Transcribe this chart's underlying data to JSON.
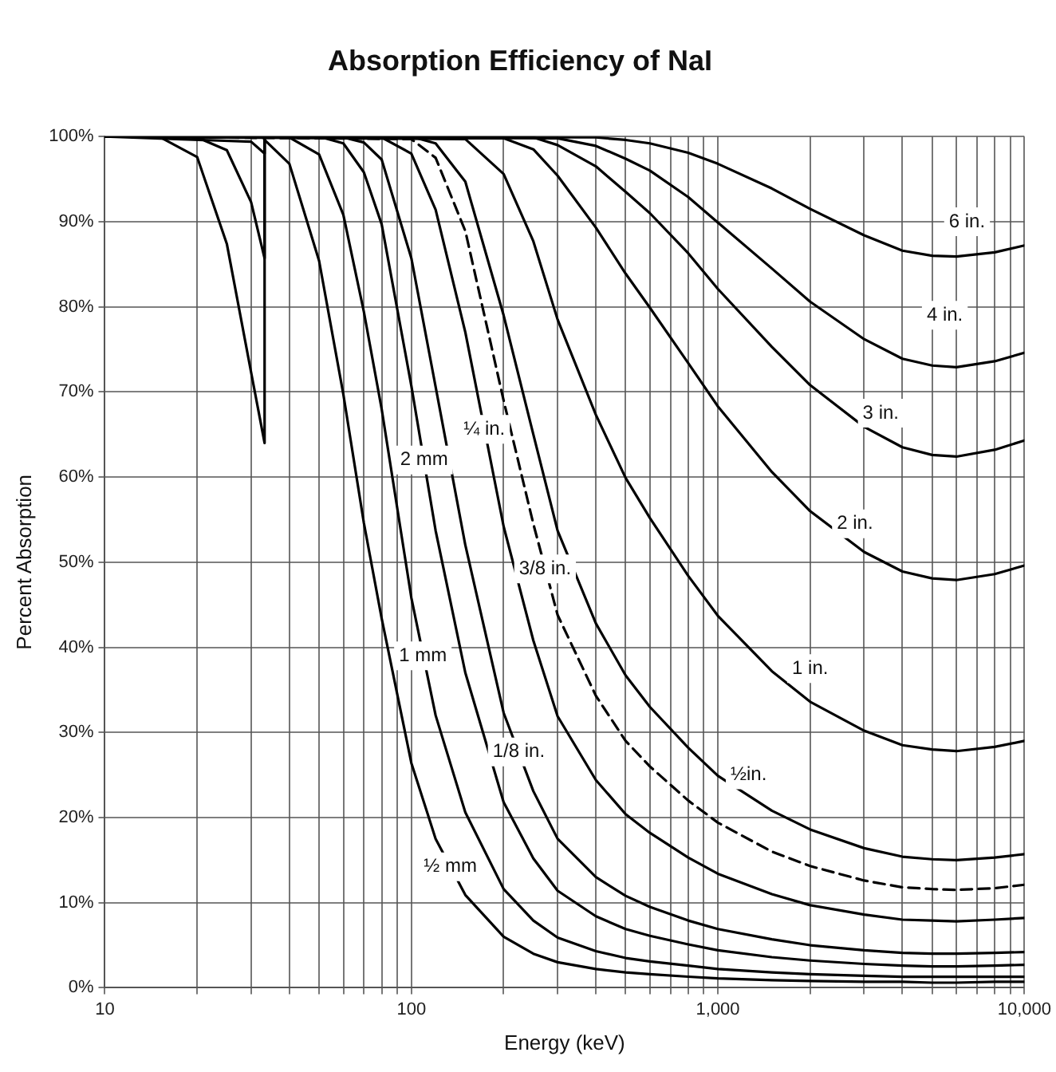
{
  "chart_data": {
    "type": "line",
    "title": "Absorption Efficiency of NaI",
    "xlabel": "Energy (keV)",
    "ylabel": "Percent Absorption",
    "log": "x",
    "grid": true,
    "marker": "none",
    "line_style": "solid",
    "xlim": [
      10,
      10000
    ],
    "ylim": [
      0,
      100
    ],
    "xticks": [
      10,
      {
        "value": 20,
        "label": null
      },
      {
        "value": 30,
        "label": null
      },
      {
        "value": 40,
        "label": null
      },
      {
        "value": 50,
        "label": null
      },
      {
        "value": 60,
        "label": null
      },
      {
        "value": 70,
        "label": null
      },
      {
        "value": 80,
        "label": null
      },
      {
        "value": 90,
        "label": null
      },
      100,
      {
        "value": 200,
        "label": null
      },
      {
        "value": 300,
        "label": null
      },
      {
        "value": 400,
        "label": null
      },
      {
        "value": 500,
        "label": null
      },
      {
        "value": 600,
        "label": null
      },
      {
        "value": 700,
        "label": null
      },
      {
        "value": 800,
        "label": null
      },
      {
        "value": 900,
        "label": null
      },
      {
        "value": 1000,
        "label": "1,000"
      },
      {
        "value": 2000,
        "label": null
      },
      {
        "value": 3000,
        "label": null
      },
      {
        "value": 4000,
        "label": null
      },
      {
        "value": 5000,
        "label": null
      },
      {
        "value": 6000,
        "label": null
      },
      {
        "value": 7000,
        "label": null
      },
      {
        "value": 8000,
        "label": null
      },
      {
        "value": 9000,
        "label": null
      },
      {
        "value": 10000,
        "label": "10,000"
      }
    ],
    "yticks": [
      {
        "value": 0,
        "label": "0%"
      },
      {
        "value": 10,
        "label": "10%"
      },
      {
        "value": 20,
        "label": "20%"
      },
      {
        "value": 30,
        "label": "30%"
      },
      {
        "value": 40,
        "label": "40%"
      },
      {
        "value": 50,
        "label": "50%"
      },
      {
        "value": 60,
        "label": "60%"
      },
      {
        "value": 70,
        "label": "70%"
      },
      {
        "value": 80,
        "label": "80%"
      },
      {
        "value": 90,
        "label": "90%"
      },
      {
        "value": 100,
        "label": "100%"
      }
    ],
    "series": [
      {
        "color": "#000000",
        "x": [
          10,
          15,
          20,
          25,
          30,
          33.2,
          33.2,
          40,
          50,
          60,
          70,
          80,
          100,
          120,
          150,
          200,
          250,
          300,
          400,
          500,
          600,
          800,
          1000,
          1500,
          2000,
          3000,
          4000,
          5000,
          6000,
          8000,
          10000
        ],
        "values": [
          100,
          100,
          97.6,
          87.4,
          72.3,
          64,
          99.6,
          96.8,
          85.4,
          69.7,
          54.6,
          43.4,
          26.4,
          17.5,
          10.9,
          6.0,
          4.0,
          3.0,
          2.2,
          1.8,
          1.6,
          1.3,
          1.1,
          0.9,
          0.8,
          0.7,
          0.7,
          0.6,
          0.6,
          0.7,
          0.7
        ]
      },
      {
        "color": "#000000",
        "x": [
          10,
          20,
          25,
          30,
          33.2,
          33.2,
          40,
          50,
          60,
          70,
          80,
          100,
          120,
          150,
          200,
          250,
          300,
          400,
          500,
          600,
          800,
          1000,
          1500,
          2000,
          3000,
          4000,
          5000,
          6000,
          8000,
          10000
        ],
        "values": [
          100,
          99.9,
          98.4,
          92.3,
          85.7,
          100,
          99.9,
          97.9,
          90.8,
          79.4,
          68.0,
          45.8,
          32.0,
          20.6,
          11.6,
          7.9,
          5.9,
          4.3,
          3.5,
          3.1,
          2.6,
          2.2,
          1.8,
          1.6,
          1.4,
          1.3,
          1.3,
          1.3,
          1.3,
          1.3
        ]
      },
      {
        "color": "#000000",
        "x": [
          10,
          30,
          33.2,
          33.2,
          50,
          60,
          70,
          80,
          100,
          120,
          150,
          200,
          250,
          300,
          400,
          500,
          600,
          800,
          1000,
          1500,
          2000,
          3000,
          4000,
          5000,
          6000,
          8000,
          10000
        ],
        "values": [
          100,
          99.4,
          98.0,
          100,
          100,
          99.2,
          95.8,
          89.7,
          70.7,
          53.7,
          37.0,
          21.8,
          15.2,
          11.4,
          8.4,
          6.9,
          6.1,
          5.1,
          4.4,
          3.6,
          3.2,
          2.8,
          2.6,
          2.5,
          2.5,
          2.6,
          2.7
        ]
      },
      {
        "color": "#000000",
        "x": [
          10,
          60,
          70,
          80,
          100,
          120,
          150,
          200,
          250,
          300,
          400,
          500,
          600,
          800,
          1000,
          1500,
          2000,
          3000,
          4000,
          5000,
          6000,
          8000,
          10000
        ],
        "values": [
          100,
          99.9,
          99.3,
          97.3,
          85.7,
          70.6,
          52.0,
          32.3,
          23.1,
          17.5,
          13.0,
          10.8,
          9.5,
          7.9,
          6.9,
          5.7,
          5.0,
          4.4,
          4.1,
          4.0,
          4.0,
          4.1,
          4.2
        ]
      },
      {
        "color": "#000000",
        "x": [
          10,
          80,
          100,
          120,
          150,
          200,
          250,
          300,
          400,
          500,
          600,
          800,
          1000,
          1500,
          2000,
          3000,
          4000,
          5000,
          6000,
          8000,
          10000
        ],
        "values": [
          100,
          99.9,
          98.0,
          91.4,
          77.0,
          54.2,
          40.8,
          31.9,
          24.4,
          20.4,
          18.2,
          15.3,
          13.4,
          11.0,
          9.7,
          8.6,
          8.0,
          7.9,
          7.8,
          8.0,
          8.2
        ]
      },
      {
        "color": "#000000",
        "line_style": "dashed",
        "x": [
          10,
          100,
          120,
          150,
          200,
          250,
          300,
          400,
          500,
          600,
          800,
          1000,
          1500,
          2000,
          3000,
          4000,
          5000,
          6000,
          8000,
          10000
        ],
        "values": [
          100,
          99.7,
          97.5,
          88.9,
          69.0,
          54.5,
          43.8,
          34.3,
          29.0,
          26.0,
          22.0,
          19.4,
          16.0,
          14.3,
          12.6,
          11.8,
          11.6,
          11.5,
          11.7,
          12.1
        ]
      },
      {
        "color": "#000000",
        "x": [
          10,
          100,
          120,
          150,
          200,
          250,
          300,
          400,
          500,
          600,
          800,
          1000,
          1500,
          2000,
          3000,
          4000,
          5000,
          6000,
          8000,
          10000
        ],
        "values": [
          100,
          100,
          99.2,
          94.7,
          79.0,
          65.0,
          53.7,
          42.8,
          36.7,
          33.0,
          28.2,
          24.9,
          20.8,
          18.6,
          16.4,
          15.4,
          15.1,
          15.0,
          15.3,
          15.7
        ]
      },
      {
        "color": "#000000",
        "x": [
          10,
          150,
          200,
          250,
          300,
          400,
          500,
          600,
          800,
          1000,
          1500,
          2000,
          3000,
          4000,
          5000,
          6000,
          8000,
          10000
        ],
        "values": [
          100,
          99.7,
          95.6,
          87.7,
          78.5,
          67.3,
          59.9,
          55.2,
          48.4,
          43.7,
          37.2,
          33.6,
          30.2,
          28.5,
          28.0,
          27.8,
          28.3,
          29.0
        ]
      },
      {
        "color": "#000000",
        "x": [
          10,
          200,
          250,
          300,
          400,
          500,
          600,
          800,
          1000,
          1500,
          2000,
          3000,
          4000,
          5000,
          6000,
          8000,
          10000
        ],
        "values": [
          100,
          99.8,
          98.5,
          95.4,
          89.3,
          83.9,
          79.9,
          73.4,
          68.3,
          60.6,
          56.0,
          51.2,
          48.9,
          48.1,
          47.9,
          48.6,
          49.6
        ]
      },
      {
        "color": "#000000",
        "x": [
          10,
          250,
          300,
          400,
          500,
          600,
          800,
          1000,
          1500,
          2000,
          3000,
          4000,
          5000,
          6000,
          8000,
          10000
        ],
        "values": [
          100,
          99.9,
          99.0,
          96.5,
          93.5,
          91.0,
          86.3,
          82.1,
          75.3,
          70.8,
          65.9,
          63.5,
          62.6,
          62.4,
          63.2,
          64.3
        ]
      },
      {
        "color": "#000000",
        "x": [
          10,
          300,
          400,
          500,
          600,
          800,
          1000,
          1500,
          2000,
          3000,
          4000,
          5000,
          6000,
          8000,
          10000
        ],
        "values": [
          100,
          99.8,
          98.9,
          97.4,
          96.0,
          92.9,
          89.9,
          84.5,
          80.6,
          76.2,
          73.9,
          73.1,
          72.9,
          73.6,
          74.6
        ]
      },
      {
        "color": "#000000",
        "x": [
          10,
          400,
          500,
          600,
          800,
          1000,
          1500,
          2000,
          3000,
          4000,
          5000,
          6000,
          8000,
          10000
        ],
        "values": [
          100,
          99.9,
          99.6,
          99.2,
          98.1,
          96.8,
          93.9,
          91.5,
          88.4,
          86.6,
          86.0,
          85.9,
          86.4,
          87.2
        ]
      }
    ],
    "annotations": [
      {
        "text": "6 in.",
        "x": 6500,
        "y": 90
      },
      {
        "text": "4 in.",
        "x": 5500,
        "y": 79
      },
      {
        "text": "3 in.",
        "x": 3400,
        "y": 67.5
      },
      {
        "text": "2 in.",
        "x": 2800,
        "y": 54.5
      },
      {
        "text": "1 in.",
        "x": 2000,
        "y": 37.5
      },
      {
        "text": "½in.",
        "x": 1260,
        "y": 25
      },
      {
        "text": "3/8 in.",
        "x": 273,
        "y": 49.2
      },
      {
        "text": "¼ in.",
        "x": 173,
        "y": 65.6
      },
      {
        "text": "1/8 in.",
        "x": 224,
        "y": 27.7
      },
      {
        "text": "2 mm",
        "x": 110,
        "y": 62
      },
      {
        "text": "1 mm",
        "x": 109,
        "y": 39
      },
      {
        "text": "½ mm",
        "x": 134,
        "y": 14.2
      }
    ]
  }
}
